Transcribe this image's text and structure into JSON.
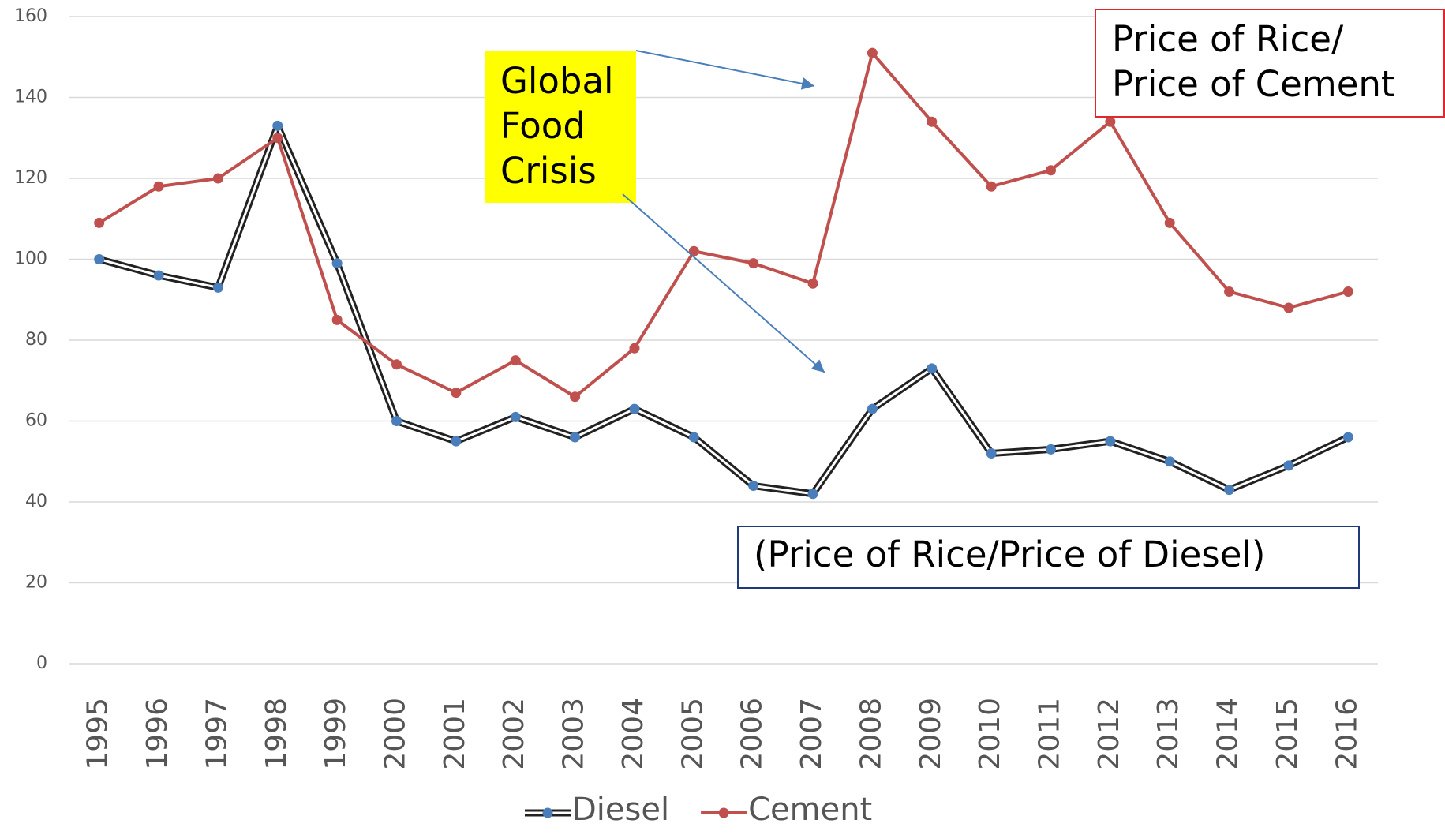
{
  "chart_data": {
    "type": "line",
    "categories": [
      "1995",
      "1996",
      "1997",
      "1998",
      "1999",
      "2000",
      "2001",
      "2002",
      "2003",
      "2004",
      "2005",
      "2006",
      "2007",
      "2008",
      "2009",
      "2010",
      "2011",
      "2012",
      "2013",
      "2014",
      "2015",
      "2016"
    ],
    "series": [
      {
        "name": "Diesel",
        "color": "#222222",
        "marker_color": "#4a7ebb",
        "values": [
          100,
          96,
          93,
          133,
          99,
          60,
          55,
          61,
          56,
          63,
          56,
          44,
          42,
          63,
          73,
          52,
          53,
          55,
          50,
          43,
          49,
          56
        ]
      },
      {
        "name": "Cement",
        "color": "#c0504d",
        "marker_color": "#c0504d",
        "values": [
          109,
          118,
          120,
          130,
          85,
          74,
          67,
          75,
          66,
          78,
          102,
          99,
          94,
          151,
          134,
          118,
          122,
          134,
          109,
          92,
          88,
          92
        ]
      }
    ],
    "ylim": [
      0,
      160
    ],
    "yticks": [
      0,
      20,
      40,
      60,
      80,
      100,
      120,
      140,
      160
    ],
    "grid": true,
    "legend": "bottom",
    "annotations": [
      {
        "lines": [
          "Global",
          "Food",
          "Crisis"
        ]
      },
      {
        "lines": [
          "Price of Rice/",
          "Price of Cement"
        ]
      },
      {
        "lines": [
          "(Price of Rice/Price  of Diesel)"
        ]
      }
    ]
  }
}
